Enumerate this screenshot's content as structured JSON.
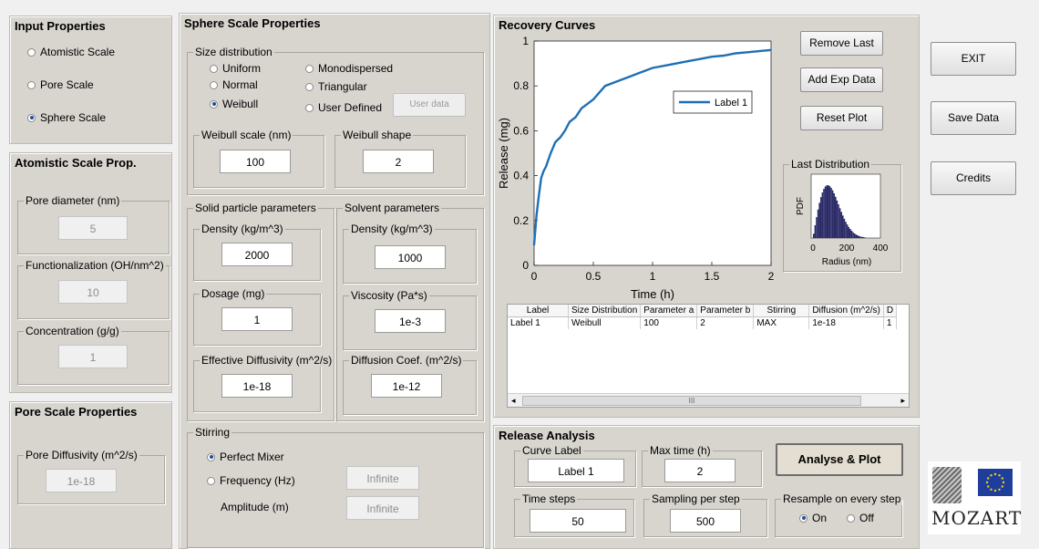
{
  "input_properties": {
    "title": "Input Properties",
    "options": [
      {
        "label": "Atomistic Scale",
        "selected": false
      },
      {
        "label": "Pore Scale",
        "selected": false
      },
      {
        "label": "Sphere Scale",
        "selected": true
      }
    ]
  },
  "atomistic": {
    "title": "Atomistic Scale Prop.",
    "pore_diameter": {
      "label": "Pore diameter (nm)",
      "value": "5"
    },
    "functionalization": {
      "label": "Functionalization (OH/nm^2)",
      "value": "10"
    },
    "concentration": {
      "label": "Concentration (g/g)",
      "value": "1"
    }
  },
  "pore_scale": {
    "title": "Pore Scale Properties",
    "pore_diffusivity": {
      "label": "Pore Diffusivity (m^2/s)",
      "value": "1e-18"
    }
  },
  "sphere": {
    "title": "Sphere Scale Properties",
    "size_distribution": {
      "label": "Size distribution",
      "options": [
        {
          "label": "Uniform",
          "selected": false
        },
        {
          "label": "Normal",
          "selected": false
        },
        {
          "label": "Weibull",
          "selected": true
        },
        {
          "label": "Monodispersed",
          "selected": false
        },
        {
          "label": "Triangular",
          "selected": false
        },
        {
          "label": "User Defined",
          "selected": false
        }
      ],
      "user_data_button": "User data"
    },
    "weibull_scale": {
      "label": "Weibull scale (nm)",
      "value": "100"
    },
    "weibull_shape": {
      "label": "Weibull shape",
      "value": "2"
    },
    "solid": {
      "label": "Solid particle parameters",
      "density": {
        "label": "Density (kg/m^3)",
        "value": "2000"
      },
      "dosage": {
        "label": "Dosage (mg)",
        "value": "1"
      },
      "eff_diff": {
        "label": "Effective Diffusivity (m^2/s)",
        "value": "1e-18"
      }
    },
    "solvent": {
      "label": "Solvent parameters",
      "density": {
        "label": "Density (kg/m^3)",
        "value": "1000"
      },
      "viscosity": {
        "label": "Viscosity (Pa*s)",
        "value": "1e-3"
      },
      "diff_coef": {
        "label": "Diffusion Coef. (m^2/s)",
        "value": "1e-12"
      }
    },
    "stirring": {
      "label": "Stirring",
      "perfect_mixer": {
        "label": "Perfect Mixer",
        "selected": true
      },
      "frequency": {
        "label": "Frequency (Hz)",
        "selected": false,
        "value": "Infinite"
      },
      "amplitude": {
        "label": "Amplitude (m)",
        "value": "Infinite"
      }
    }
  },
  "recovery": {
    "title": "Recovery Curves",
    "buttons": {
      "remove_last": "Remove Last",
      "add_exp": "Add Exp Data",
      "reset_plot": "Reset Plot"
    },
    "last_distribution": {
      "label": "Last Distribution",
      "ylabel": "PDF",
      "xlabel": "Radius (nm)",
      "xticks": [
        "0",
        "200",
        "400"
      ]
    },
    "table": {
      "headers": [
        "Label",
        "Size Distribution",
        "Parameter a",
        "Parameter b",
        "Stirring",
        "Diffusion (m^2/s)",
        "D"
      ],
      "rows": [
        [
          "Label 1",
          "Weibull",
          "100",
          "2",
          "MAX",
          "1e-18",
          "1"
        ]
      ],
      "scroll_mark": "III"
    }
  },
  "chart_data": {
    "type": "line",
    "xlabel": "Time (h)",
    "ylabel": "Release (mg)",
    "xlim": [
      0,
      2
    ],
    "ylim": [
      0,
      1
    ],
    "xticks": [
      "0",
      "0.5",
      "1",
      "1.5",
      "2"
    ],
    "yticks": [
      "0",
      "0.2",
      "0.4",
      "0.6",
      "0.8",
      "1"
    ],
    "legend_position": "center-right",
    "series": [
      {
        "name": "Label 1",
        "color": "#1f6fb4",
        "x": [
          0,
          0.02,
          0.04,
          0.06,
          0.08,
          0.1,
          0.14,
          0.18,
          0.22,
          0.26,
          0.3,
          0.35,
          0.4,
          0.45,
          0.5,
          0.55,
          0.6,
          0.7,
          0.8,
          0.9,
          1.0,
          1.1,
          1.2,
          1.3,
          1.4,
          1.5,
          1.6,
          1.7,
          1.8,
          1.9,
          2.0
        ],
        "y": [
          0.09,
          0.22,
          0.31,
          0.39,
          0.42,
          0.44,
          0.5,
          0.55,
          0.57,
          0.6,
          0.64,
          0.66,
          0.7,
          0.72,
          0.74,
          0.77,
          0.8,
          0.82,
          0.84,
          0.86,
          0.88,
          0.89,
          0.9,
          0.91,
          0.92,
          0.93,
          0.935,
          0.945,
          0.95,
          0.955,
          0.96
        ]
      }
    ]
  },
  "release_analysis": {
    "title": "Release Analysis",
    "curve_label": {
      "label": "Curve Label",
      "value": "Label 1"
    },
    "max_time": {
      "label": "Max time (h)",
      "value": "2"
    },
    "time_steps": {
      "label": "Time steps",
      "value": "50"
    },
    "sampling": {
      "label": "Sampling per step",
      "value": "500"
    },
    "resample": {
      "label": "Resample on every step",
      "on": "On",
      "off": "Off",
      "selected": "On"
    },
    "analyse_button": "Analyse & Plot"
  },
  "side_buttons": {
    "exit": "EXIT",
    "save": "Save Data",
    "credits": "Credits"
  },
  "logo": {
    "text": "MOZART"
  }
}
